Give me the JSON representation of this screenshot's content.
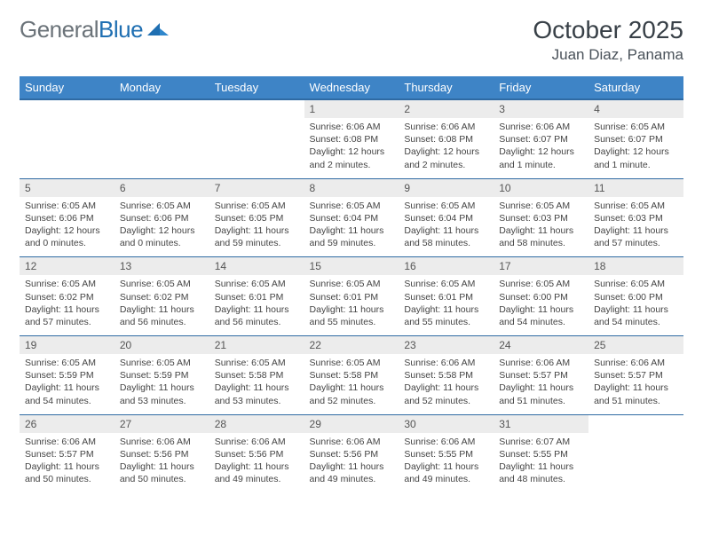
{
  "logo": {
    "general": "General",
    "blue": "Blue"
  },
  "title": "October 2025",
  "location": "Juan Diaz, Panama",
  "colors": {
    "header_bg": "#3e84c6",
    "row_divider": "#2f6aa3",
    "daynum_bg": "#ececec",
    "logo_gray": "#6b7379",
    "logo_blue": "#1f6fb2"
  },
  "weekdays": [
    "Sunday",
    "Monday",
    "Tuesday",
    "Wednesday",
    "Thursday",
    "Friday",
    "Saturday"
  ],
  "weeks": [
    [
      {
        "n": "",
        "sr": "",
        "ss": "",
        "dl": "",
        "empty": true
      },
      {
        "n": "",
        "sr": "",
        "ss": "",
        "dl": "",
        "empty": true
      },
      {
        "n": "",
        "sr": "",
        "ss": "",
        "dl": "",
        "empty": true
      },
      {
        "n": "1",
        "sr": "Sunrise: 6:06 AM",
        "ss": "Sunset: 6:08 PM",
        "dl": "Daylight: 12 hours and 2 minutes."
      },
      {
        "n": "2",
        "sr": "Sunrise: 6:06 AM",
        "ss": "Sunset: 6:08 PM",
        "dl": "Daylight: 12 hours and 2 minutes."
      },
      {
        "n": "3",
        "sr": "Sunrise: 6:06 AM",
        "ss": "Sunset: 6:07 PM",
        "dl": "Daylight: 12 hours and 1 minute."
      },
      {
        "n": "4",
        "sr": "Sunrise: 6:05 AM",
        "ss": "Sunset: 6:07 PM",
        "dl": "Daylight: 12 hours and 1 minute."
      }
    ],
    [
      {
        "n": "5",
        "sr": "Sunrise: 6:05 AM",
        "ss": "Sunset: 6:06 PM",
        "dl": "Daylight: 12 hours and 0 minutes."
      },
      {
        "n": "6",
        "sr": "Sunrise: 6:05 AM",
        "ss": "Sunset: 6:06 PM",
        "dl": "Daylight: 12 hours and 0 minutes."
      },
      {
        "n": "7",
        "sr": "Sunrise: 6:05 AM",
        "ss": "Sunset: 6:05 PM",
        "dl": "Daylight: 11 hours and 59 minutes."
      },
      {
        "n": "8",
        "sr": "Sunrise: 6:05 AM",
        "ss": "Sunset: 6:04 PM",
        "dl": "Daylight: 11 hours and 59 minutes."
      },
      {
        "n": "9",
        "sr": "Sunrise: 6:05 AM",
        "ss": "Sunset: 6:04 PM",
        "dl": "Daylight: 11 hours and 58 minutes."
      },
      {
        "n": "10",
        "sr": "Sunrise: 6:05 AM",
        "ss": "Sunset: 6:03 PM",
        "dl": "Daylight: 11 hours and 58 minutes."
      },
      {
        "n": "11",
        "sr": "Sunrise: 6:05 AM",
        "ss": "Sunset: 6:03 PM",
        "dl": "Daylight: 11 hours and 57 minutes."
      }
    ],
    [
      {
        "n": "12",
        "sr": "Sunrise: 6:05 AM",
        "ss": "Sunset: 6:02 PM",
        "dl": "Daylight: 11 hours and 57 minutes."
      },
      {
        "n": "13",
        "sr": "Sunrise: 6:05 AM",
        "ss": "Sunset: 6:02 PM",
        "dl": "Daylight: 11 hours and 56 minutes."
      },
      {
        "n": "14",
        "sr": "Sunrise: 6:05 AM",
        "ss": "Sunset: 6:01 PM",
        "dl": "Daylight: 11 hours and 56 minutes."
      },
      {
        "n": "15",
        "sr": "Sunrise: 6:05 AM",
        "ss": "Sunset: 6:01 PM",
        "dl": "Daylight: 11 hours and 55 minutes."
      },
      {
        "n": "16",
        "sr": "Sunrise: 6:05 AM",
        "ss": "Sunset: 6:01 PM",
        "dl": "Daylight: 11 hours and 55 minutes."
      },
      {
        "n": "17",
        "sr": "Sunrise: 6:05 AM",
        "ss": "Sunset: 6:00 PM",
        "dl": "Daylight: 11 hours and 54 minutes."
      },
      {
        "n": "18",
        "sr": "Sunrise: 6:05 AM",
        "ss": "Sunset: 6:00 PM",
        "dl": "Daylight: 11 hours and 54 minutes."
      }
    ],
    [
      {
        "n": "19",
        "sr": "Sunrise: 6:05 AM",
        "ss": "Sunset: 5:59 PM",
        "dl": "Daylight: 11 hours and 54 minutes."
      },
      {
        "n": "20",
        "sr": "Sunrise: 6:05 AM",
        "ss": "Sunset: 5:59 PM",
        "dl": "Daylight: 11 hours and 53 minutes."
      },
      {
        "n": "21",
        "sr": "Sunrise: 6:05 AM",
        "ss": "Sunset: 5:58 PM",
        "dl": "Daylight: 11 hours and 53 minutes."
      },
      {
        "n": "22",
        "sr": "Sunrise: 6:05 AM",
        "ss": "Sunset: 5:58 PM",
        "dl": "Daylight: 11 hours and 52 minutes."
      },
      {
        "n": "23",
        "sr": "Sunrise: 6:06 AM",
        "ss": "Sunset: 5:58 PM",
        "dl": "Daylight: 11 hours and 52 minutes."
      },
      {
        "n": "24",
        "sr": "Sunrise: 6:06 AM",
        "ss": "Sunset: 5:57 PM",
        "dl": "Daylight: 11 hours and 51 minutes."
      },
      {
        "n": "25",
        "sr": "Sunrise: 6:06 AM",
        "ss": "Sunset: 5:57 PM",
        "dl": "Daylight: 11 hours and 51 minutes."
      }
    ],
    [
      {
        "n": "26",
        "sr": "Sunrise: 6:06 AM",
        "ss": "Sunset: 5:57 PM",
        "dl": "Daylight: 11 hours and 50 minutes."
      },
      {
        "n": "27",
        "sr": "Sunrise: 6:06 AM",
        "ss": "Sunset: 5:56 PM",
        "dl": "Daylight: 11 hours and 50 minutes."
      },
      {
        "n": "28",
        "sr": "Sunrise: 6:06 AM",
        "ss": "Sunset: 5:56 PM",
        "dl": "Daylight: 11 hours and 49 minutes."
      },
      {
        "n": "29",
        "sr": "Sunrise: 6:06 AM",
        "ss": "Sunset: 5:56 PM",
        "dl": "Daylight: 11 hours and 49 minutes."
      },
      {
        "n": "30",
        "sr": "Sunrise: 6:06 AM",
        "ss": "Sunset: 5:55 PM",
        "dl": "Daylight: 11 hours and 49 minutes."
      },
      {
        "n": "31",
        "sr": "Sunrise: 6:07 AM",
        "ss": "Sunset: 5:55 PM",
        "dl": "Daylight: 11 hours and 48 minutes."
      },
      {
        "n": "",
        "sr": "",
        "ss": "",
        "dl": "",
        "empty": true
      }
    ]
  ]
}
